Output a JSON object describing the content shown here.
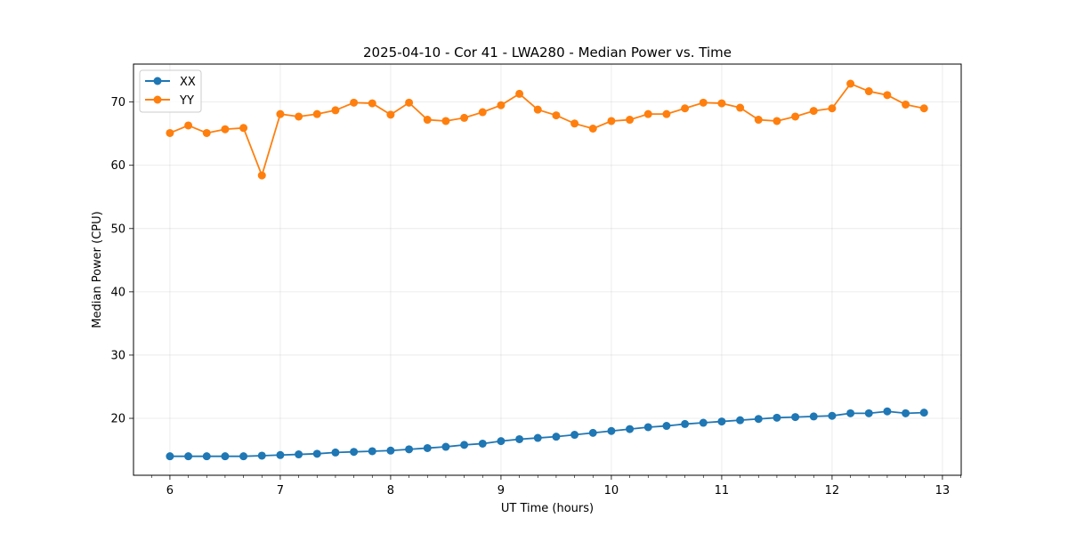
{
  "chart_data": {
    "type": "line",
    "title": "2025-04-10 - Cor 41 - LWA280 - Median Power vs. Time",
    "xlabel": "UT Time (hours)",
    "ylabel": "Median Power (CPU)",
    "xlim": [
      5.67,
      13.17
    ],
    "ylim": [
      11,
      76
    ],
    "xticks": [
      6,
      7,
      8,
      9,
      10,
      11,
      12,
      13
    ],
    "yticks": [
      20,
      30,
      40,
      50,
      60,
      70
    ],
    "grid": true,
    "legend_position": "top-left",
    "x": [
      6.0,
      6.1667,
      6.3333,
      6.5,
      6.6667,
      6.8333,
      7.0,
      7.1667,
      7.3333,
      7.5,
      7.6667,
      7.8333,
      8.0,
      8.1667,
      8.3333,
      8.5,
      8.6667,
      8.8333,
      9.0,
      9.1667,
      9.3333,
      9.5,
      9.6667,
      9.8333,
      10.0,
      10.1667,
      10.3333,
      10.5,
      10.6667,
      10.8333,
      11.0,
      11.1667,
      11.3333,
      11.5,
      11.6667,
      11.8333,
      12.0,
      12.1667,
      12.3333,
      12.5,
      12.6667,
      12.8333
    ],
    "series": [
      {
        "name": "XX",
        "color": "#1f77b4",
        "values": [
          14.0,
          14.0,
          14.0,
          14.0,
          14.0,
          14.1,
          14.2,
          14.3,
          14.4,
          14.6,
          14.7,
          14.8,
          14.9,
          15.1,
          15.3,
          15.5,
          15.8,
          16.0,
          16.4,
          16.7,
          16.9,
          17.1,
          17.4,
          17.7,
          18.0,
          18.3,
          18.6,
          18.8,
          19.1,
          19.3,
          19.5,
          19.7,
          19.9,
          20.1,
          20.2,
          20.3,
          20.4,
          20.8,
          20.8,
          21.1,
          20.8,
          20.9
        ]
      },
      {
        "name": "YY",
        "color": "#ff7f0e",
        "values": [
          65.1,
          66.3,
          65.1,
          65.7,
          65.9,
          58.4,
          68.1,
          67.7,
          68.1,
          68.7,
          69.9,
          69.8,
          68.0,
          69.9,
          67.2,
          67.0,
          67.5,
          68.4,
          69.5,
          71.3,
          68.8,
          67.9,
          66.6,
          65.8,
          67.0,
          67.2,
          68.1,
          68.1,
          69.0,
          69.9,
          69.8,
          69.1,
          67.2,
          67.0,
          67.7,
          68.6,
          69.0,
          72.9,
          71.7,
          71.1,
          69.6,
          69.0
        ]
      }
    ]
  }
}
